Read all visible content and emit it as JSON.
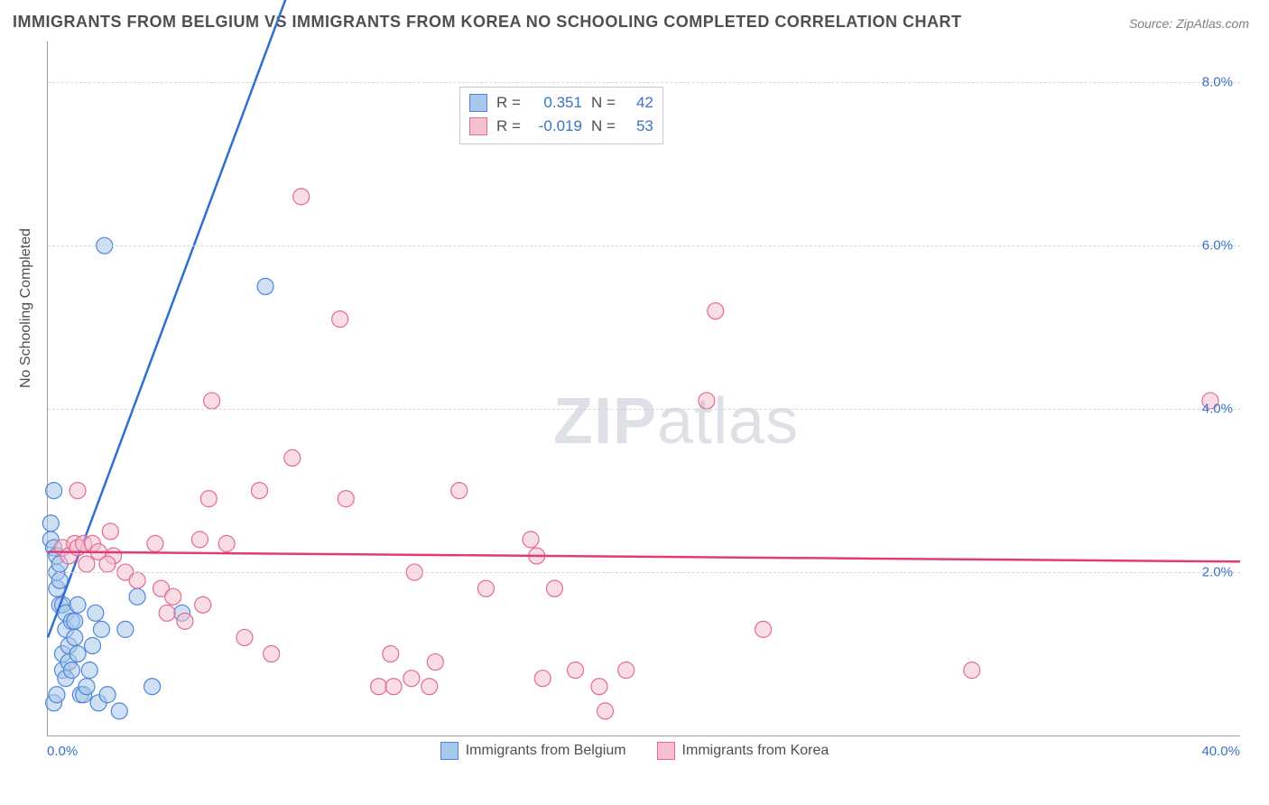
{
  "title": "IMMIGRANTS FROM BELGIUM VS IMMIGRANTS FROM KOREA NO SCHOOLING COMPLETED CORRELATION CHART",
  "source_label": "Source:",
  "source_value": "ZipAtlas.com",
  "ylabel": "No Schooling Completed",
  "watermark_a": "ZIP",
  "watermark_b": "atlas",
  "chart": {
    "type": "scatter",
    "x_min": 0.0,
    "x_max": 40.0,
    "y_min": 0.0,
    "y_max": 8.5,
    "x_start_label": "0.0%",
    "x_end_label": "40.0%",
    "y_ticks": [
      2.0,
      4.0,
      6.0,
      8.0
    ],
    "y_tick_labels": [
      "2.0%",
      "4.0%",
      "6.0%",
      "8.0%"
    ],
    "grid_color": "#d6d6d6",
    "tick_label_color": "#3973c6",
    "axis_color": "#9e9e9e",
    "marker_radius": 9,
    "marker_opacity": 0.55,
    "series": [
      {
        "name": "Immigrants from Belgium",
        "fill": "#a8c7ea",
        "stroke": "#4d86d9",
        "trend": {
          "slope": 0.98,
          "intercept": 1.2,
          "x1": 0.0,
          "x2": 8.0,
          "dash_from_x": 8.0,
          "dash_to_x": 25.5
        },
        "trend_color": "#2e6fd1",
        "stats": {
          "R": "0.351",
          "N": "42"
        },
        "points": [
          [
            0.1,
            2.6
          ],
          [
            0.1,
            2.4
          ],
          [
            0.2,
            3.0
          ],
          [
            0.2,
            2.3
          ],
          [
            0.3,
            2.2
          ],
          [
            0.3,
            2.0
          ],
          [
            0.3,
            1.8
          ],
          [
            0.4,
            1.9
          ],
          [
            0.4,
            1.6
          ],
          [
            0.4,
            2.1
          ],
          [
            0.5,
            1.6
          ],
          [
            0.5,
            1.0
          ],
          [
            0.5,
            0.8
          ],
          [
            0.6,
            0.7
          ],
          [
            0.6,
            1.5
          ],
          [
            0.6,
            1.3
          ],
          [
            0.7,
            1.1
          ],
          [
            0.7,
            0.9
          ],
          [
            0.8,
            0.8
          ],
          [
            0.8,
            1.4
          ],
          [
            0.9,
            1.4
          ],
          [
            0.9,
            1.2
          ],
          [
            1.0,
            1.0
          ],
          [
            1.0,
            1.6
          ],
          [
            1.1,
            0.5
          ],
          [
            1.2,
            0.5
          ],
          [
            1.3,
            0.6
          ],
          [
            1.4,
            0.8
          ],
          [
            1.5,
            1.1
          ],
          [
            1.6,
            1.5
          ],
          [
            1.7,
            0.4
          ],
          [
            1.8,
            1.3
          ],
          [
            2.0,
            0.5
          ],
          [
            2.4,
            0.3
          ],
          [
            2.6,
            1.3
          ],
          [
            3.0,
            1.7
          ],
          [
            1.9,
            6.0
          ],
          [
            7.3,
            5.5
          ],
          [
            4.5,
            1.5
          ],
          [
            3.5,
            0.6
          ],
          [
            0.2,
            0.4
          ],
          [
            0.3,
            0.5
          ]
        ]
      },
      {
        "name": "Immigrants from Korea",
        "fill": "#f4c1cf",
        "stroke": "#e46993",
        "trend": {
          "slope": -0.003,
          "intercept": 2.25,
          "x1": 0.0,
          "x2": 40.0
        },
        "trend_color": "#e13b75",
        "stats": {
          "R": "-0.019",
          "N": "53"
        },
        "points": [
          [
            0.5,
            2.3
          ],
          [
            0.7,
            2.2
          ],
          [
            0.9,
            2.35
          ],
          [
            1.0,
            2.3
          ],
          [
            1.2,
            2.35
          ],
          [
            1.3,
            2.1
          ],
          [
            1.5,
            2.35
          ],
          [
            1.7,
            2.25
          ],
          [
            2.1,
            2.5
          ],
          [
            2.2,
            2.2
          ],
          [
            2.6,
            2.0
          ],
          [
            3.0,
            1.9
          ],
          [
            3.6,
            2.35
          ],
          [
            3.8,
            1.8
          ],
          [
            4.0,
            1.5
          ],
          [
            4.2,
            1.7
          ],
          [
            4.6,
            1.4
          ],
          [
            5.1,
            2.4
          ],
          [
            5.2,
            1.6
          ],
          [
            5.4,
            2.9
          ],
          [
            5.5,
            4.1
          ],
          [
            6.0,
            2.35
          ],
          [
            6.6,
            1.2
          ],
          [
            7.1,
            3.0
          ],
          [
            7.5,
            1.0
          ],
          [
            8.2,
            3.4
          ],
          [
            8.5,
            6.6
          ],
          [
            9.8,
            5.1
          ],
          [
            10.0,
            2.9
          ],
          [
            11.1,
            0.6
          ],
          [
            11.5,
            1.0
          ],
          [
            11.6,
            0.6
          ],
          [
            12.2,
            0.7
          ],
          [
            12.3,
            2.0
          ],
          [
            12.8,
            0.6
          ],
          [
            13.0,
            0.9
          ],
          [
            13.8,
            3.0
          ],
          [
            14.7,
            1.8
          ],
          [
            16.2,
            2.4
          ],
          [
            16.4,
            2.2
          ],
          [
            16.6,
            0.7
          ],
          [
            17.0,
            1.8
          ],
          [
            17.7,
            0.8
          ],
          [
            18.5,
            0.6
          ],
          [
            18.7,
            0.3
          ],
          [
            19.4,
            0.8
          ],
          [
            22.1,
            4.1
          ],
          [
            22.4,
            5.2
          ],
          [
            24.0,
            1.3
          ],
          [
            31.0,
            0.8
          ],
          [
            39.0,
            4.1
          ],
          [
            1.0,
            3.0
          ],
          [
            2.0,
            2.1
          ]
        ]
      }
    ]
  },
  "legend": {
    "R_label": "R =",
    "N_label": "N ="
  }
}
